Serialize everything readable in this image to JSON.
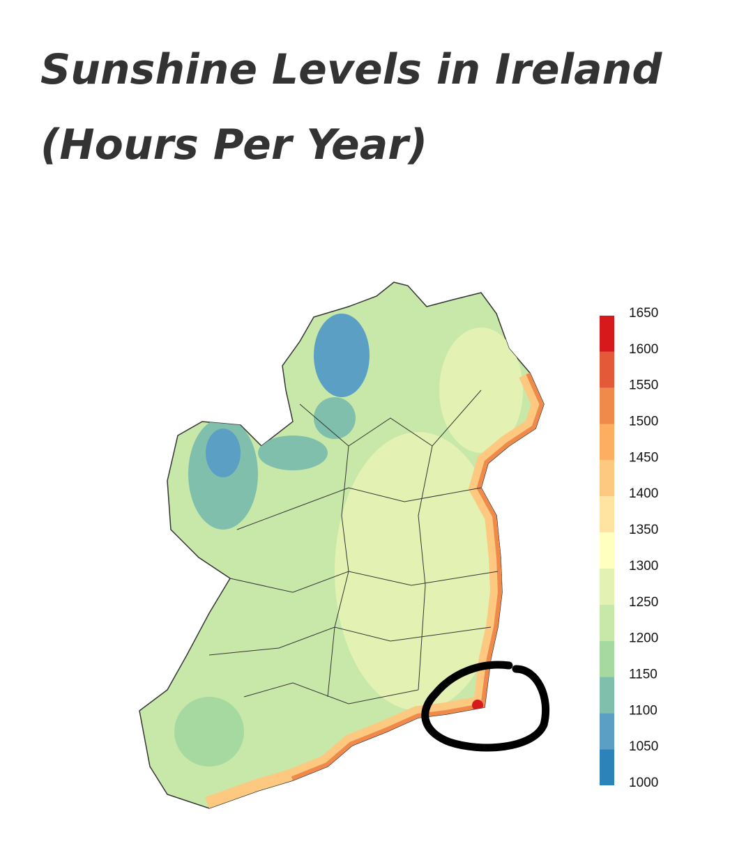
{
  "title": [
    "Sunshine Levels in Ireland",
    "(Hours Per Year)"
  ],
  "legend": {
    "ticks": [
      1000,
      1050,
      1100,
      1150,
      1200,
      1250,
      1300,
      1350,
      1400,
      1450,
      1500,
      1550,
      1600,
      1650
    ],
    "colors": [
      "#2b83ba",
      "#5ba0c4",
      "#80bfac",
      "#a6d9a0",
      "#c7e8a8",
      "#e3f2b2",
      "#ffffbf",
      "#fee4a0",
      "#fdc980",
      "#fdae61",
      "#f08a4b",
      "#e45a38",
      "#d7191c"
    ]
  }
}
